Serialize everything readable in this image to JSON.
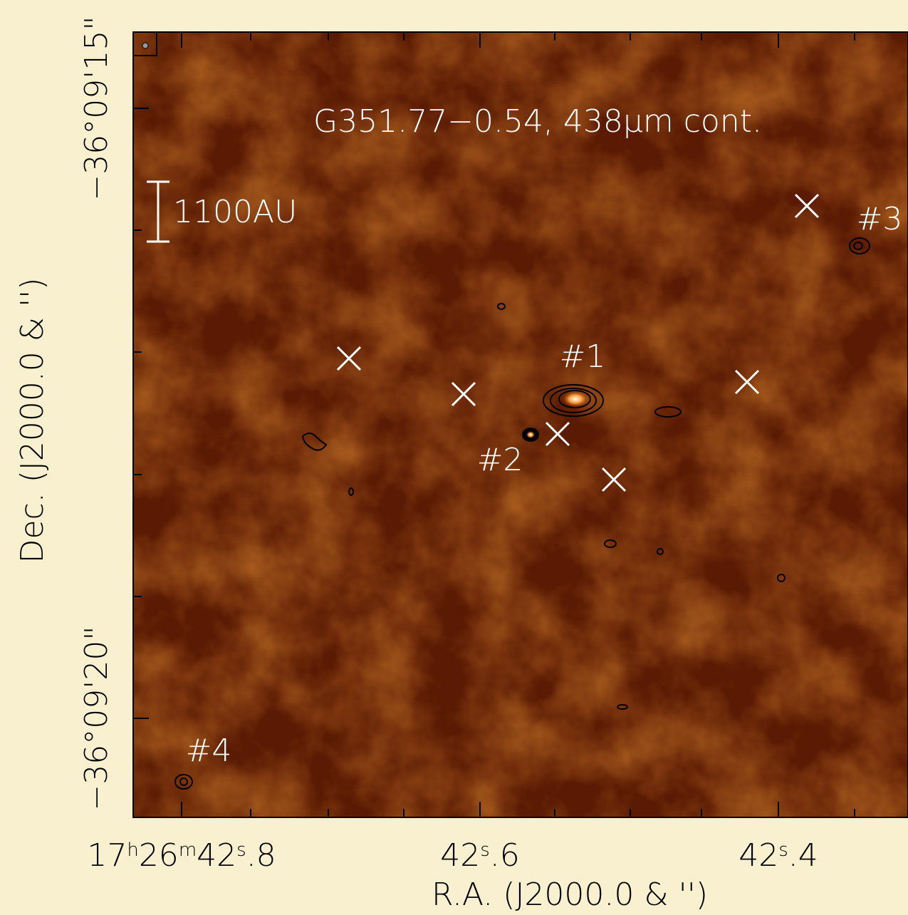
{
  "figure": {
    "title": "G351.77−0.54, 438μm cont.",
    "scale_bar": "1100AU",
    "sources": [
      "#1",
      "#2",
      "#3",
      "#4"
    ],
    "x_axis_label": "R.A. (J2000.0 & '')",
    "y_axis_label": "Dec. (J2000.0 & '')",
    "x_tick_labels": [
      [
        "17",
        "h",
        "26",
        "m",
        "42",
        "s",
        ".8"
      ],
      [
        "42",
        "s",
        ".6"
      ],
      [
        "42",
        "s",
        ".4"
      ]
    ],
    "y_tick_labels": [
      "−36°09'15\"",
      "−36°09'20\""
    ]
  }
}
